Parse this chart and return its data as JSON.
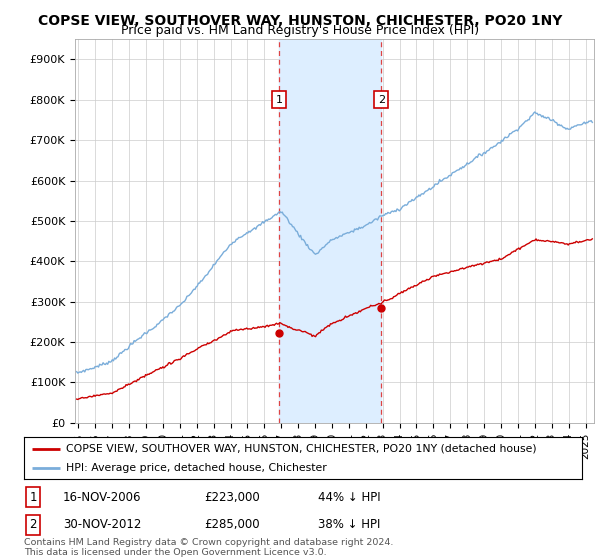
{
  "title": "COPSE VIEW, SOUTHOVER WAY, HUNSTON, CHICHESTER, PO20 1NY",
  "subtitle": "Price paid vs. HM Land Registry's House Price Index (HPI)",
  "title_fontsize": 10,
  "subtitle_fontsize": 9,
  "ylabel_ticks": [
    "£0",
    "£100K",
    "£200K",
    "£300K",
    "£400K",
    "£500K",
    "£600K",
    "£700K",
    "£800K",
    "£900K"
  ],
  "ytick_values": [
    0,
    100000,
    200000,
    300000,
    400000,
    500000,
    600000,
    700000,
    800000,
    900000
  ],
  "ylim": [
    0,
    950000
  ],
  "xlim_start": 1994.8,
  "xlim_end": 2025.5,
  "xtick_years": [
    1995,
    1996,
    1997,
    1998,
    1999,
    2000,
    2001,
    2002,
    2003,
    2004,
    2005,
    2006,
    2007,
    2008,
    2009,
    2010,
    2011,
    2012,
    2013,
    2014,
    2015,
    2016,
    2017,
    2018,
    2019,
    2020,
    2021,
    2022,
    2023,
    2024,
    2025
  ],
  "sale1_x": 2006.88,
  "sale1_y": 223000,
  "sale1_label": "1",
  "sale2_x": 2012.92,
  "sale2_y": 285000,
  "sale2_label": "2",
  "sale_color": "#cc0000",
  "hpi_color": "#7aadda",
  "shade_color": "#ddeeff",
  "vline_color": "#dd4444",
  "legend_line1": "COPSE VIEW, SOUTHOVER WAY, HUNSTON, CHICHESTER, PO20 1NY (detached house)",
  "legend_line2": "HPI: Average price, detached house, Chichester",
  "table_row1": [
    "1",
    "16-NOV-2006",
    "£223,000",
    "44% ↓ HPI"
  ],
  "table_row2": [
    "2",
    "30-NOV-2012",
    "£285,000",
    "38% ↓ HPI"
  ],
  "footer": "Contains HM Land Registry data © Crown copyright and database right 2024.\nThis data is licensed under the Open Government Licence v3.0.",
  "background_color": "#ffffff",
  "grid_color": "#cccccc"
}
